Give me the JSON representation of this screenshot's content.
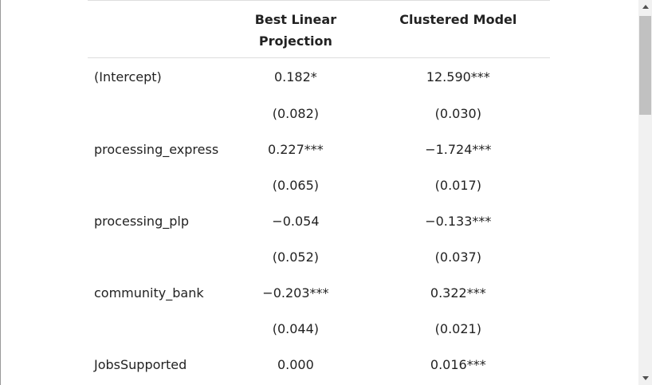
{
  "table": {
    "headers": [
      "",
      "Best Linear\nProjection",
      "Clustered Model"
    ],
    "rows": [
      {
        "label": "(Intercept)",
        "col1": "0.182*",
        "col2": "12.590***"
      },
      {
        "label": "",
        "col1": "(0.082)",
        "col2": "(0.030)"
      },
      {
        "label": "processing_express",
        "col1": "0.227***",
        "col2": "−1.724***"
      },
      {
        "label": "",
        "col1": "(0.065)",
        "col2": "(0.017)"
      },
      {
        "label": "processing_plp",
        "col1": "−0.054",
        "col2": "−0.133***"
      },
      {
        "label": "",
        "col1": "(0.052)",
        "col2": "(0.037)"
      },
      {
        "label": "community_bank",
        "col1": "−0.203***",
        "col2": "0.322***"
      },
      {
        "label": "",
        "col1": "(0.044)",
        "col2": "(0.021)"
      },
      {
        "label": "JobsSupported",
        "col1": "0.000",
        "col2": "0.016***"
      }
    ]
  },
  "scrollbar": {
    "up_icon": "triangle-up-icon",
    "down_icon": "triangle-down-icon"
  }
}
